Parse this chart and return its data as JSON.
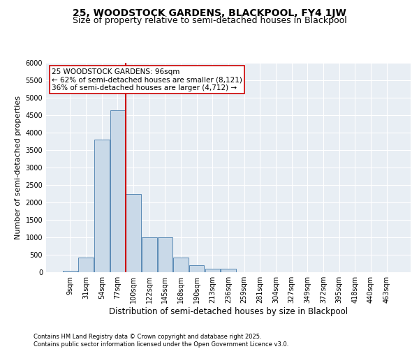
{
  "title1": "25, WOODSTOCK GARDENS, BLACKPOOL, FY4 1JW",
  "title2": "Size of property relative to semi-detached houses in Blackpool",
  "xlabel": "Distribution of semi-detached houses by size in Blackpool",
  "ylabel": "Number of semi-detached properties",
  "categories": [
    "9sqm",
    "31sqm",
    "54sqm",
    "77sqm",
    "100sqm",
    "122sqm",
    "145sqm",
    "168sqm",
    "190sqm",
    "213sqm",
    "236sqm",
    "259sqm",
    "281sqm",
    "304sqm",
    "327sqm",
    "349sqm",
    "372sqm",
    "395sqm",
    "418sqm",
    "440sqm",
    "463sqm"
  ],
  "values": [
    50,
    430,
    3800,
    4650,
    2250,
    1000,
    1000,
    430,
    200,
    100,
    100,
    0,
    0,
    0,
    0,
    0,
    0,
    0,
    0,
    0,
    0
  ],
  "bar_color": "#c9d9e8",
  "bar_edge_color": "#5a8ab5",
  "vline_color": "#cc0000",
  "annotation_text": "25 WOODSTOCK GARDENS: 96sqm\n← 62% of semi-detached houses are smaller (8,121)\n36% of semi-detached houses are larger (4,712) →",
  "annotation_box_color": "#ffffff",
  "annotation_box_edge": "#cc0000",
  "ylim": [
    0,
    6000
  ],
  "yticks": [
    0,
    500,
    1000,
    1500,
    2000,
    2500,
    3000,
    3500,
    4000,
    4500,
    5000,
    5500,
    6000
  ],
  "background_color": "#e8eef4",
  "grid_color": "#ffffff",
  "footer": "Contains HM Land Registry data © Crown copyright and database right 2025.\nContains public sector information licensed under the Open Government Licence v3.0.",
  "title1_fontsize": 10,
  "title2_fontsize": 9,
  "xlabel_fontsize": 8.5,
  "ylabel_fontsize": 8,
  "tick_fontsize": 7,
  "annotation_fontsize": 7.5,
  "footer_fontsize": 6
}
